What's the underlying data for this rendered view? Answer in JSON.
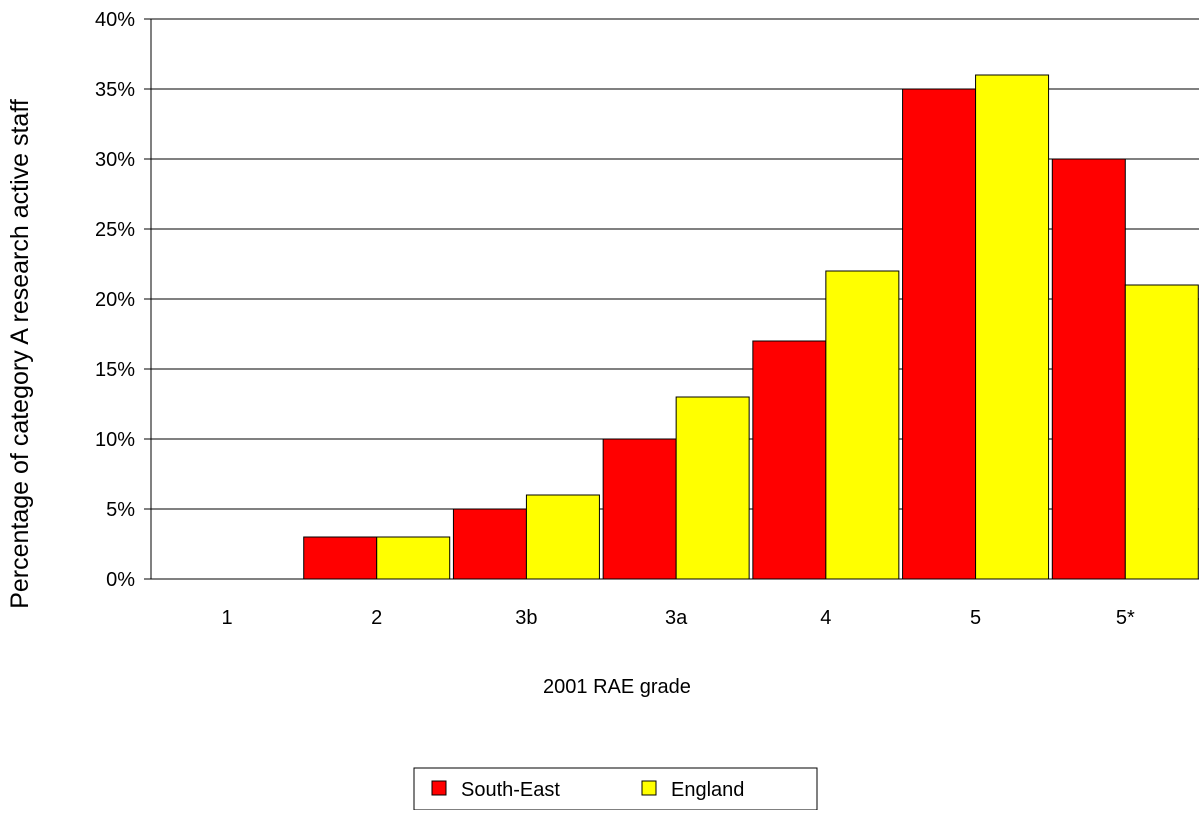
{
  "chart_data": {
    "type": "bar",
    "title": "",
    "xlabel": "2001 RAE grade",
    "ylabel": "Percentage of category A research active staff",
    "categories": [
      "1",
      "2",
      "3b",
      "3a",
      "4",
      "5",
      "5*"
    ],
    "series": [
      {
        "name": "South-East",
        "color": "#ff0000",
        "values": [
          0,
          3,
          5,
          10,
          17,
          35,
          30
        ]
      },
      {
        "name": "England",
        "color": "#ffff00",
        "values": [
          0,
          3,
          6,
          13,
          22,
          36,
          21
        ]
      }
    ],
    "ylim": [
      0,
      40
    ],
    "yticks": [
      "0%",
      "5%",
      "10%",
      "15%",
      "20%",
      "25%",
      "30%",
      "35%",
      "40%"
    ],
    "grid": true,
    "legend": "bottom"
  }
}
